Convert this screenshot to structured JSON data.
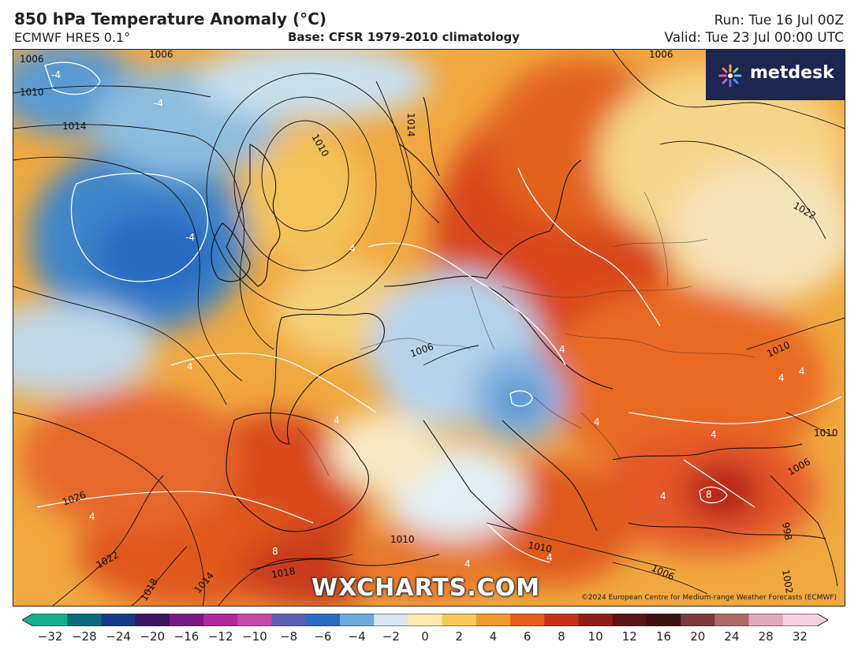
{
  "header": {
    "title": "850 hPa Temperature Anomaly (°C)",
    "model": "ECMWF HRES 0.1°",
    "base": "Base: CFSR 1979-2010 climatology",
    "run": "Run: Tue 16 Jul 00Z",
    "valid": "Valid: Tue 23 Jul 00:00 UTC"
  },
  "logo": {
    "text": "metdesk"
  },
  "watermark": "WXCHARTS.COM",
  "copyright": "©2024 European Centre for Medium-range Weather Forecasts (ECMWF)",
  "pressure_labels": [
    "1006",
    "1010",
    "1014",
    "1006",
    "1010",
    "1014",
    "1006",
    "1022",
    "1006",
    "1010",
    "1010",
    "1006",
    "998",
    "1002",
    "1010",
    "1026",
    "1022",
    "1018",
    "1014",
    "1018",
    "1010",
    "1006"
  ],
  "anomaly_labels": [
    "-4",
    "-4",
    "-4",
    "4",
    "4",
    "4",
    "4",
    "4",
    "4",
    "4",
    "4",
    "4",
    "4",
    "8",
    "8",
    "4",
    "4"
  ],
  "colorbar": {
    "ticks": [
      "−32",
      "−28",
      "−24",
      "−20",
      "−16",
      "−12",
      "−10",
      "−8",
      "−6",
      "−4",
      "−2",
      "0",
      "2",
      "4",
      "6",
      "8",
      "10",
      "12",
      "16",
      "20",
      "24",
      "28",
      "32"
    ],
    "colors": [
      "#16b08e",
      "#0a6b7c",
      "#183a86",
      "#3a1460",
      "#7a1a86",
      "#b0289c",
      "#c84aa8",
      "#5b5fb0",
      "#2a6bc4",
      "#6ea9dd",
      "#d7e6f1",
      "#fbe9b0",
      "#f5c85a",
      "#ef9a2c",
      "#e4601c",
      "#c8321a",
      "#8e1e1a",
      "#5a1414",
      "#3a1212",
      "#7a3b3b",
      "#b06a6a",
      "#e0a8b8",
      "#f4d0e0"
    ]
  }
}
